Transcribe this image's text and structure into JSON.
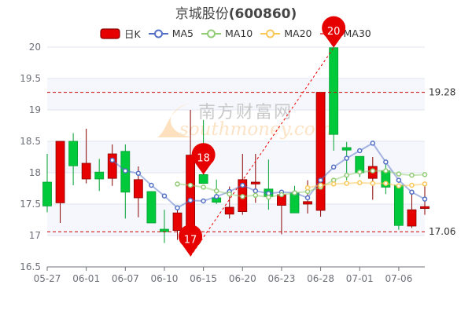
{
  "title": {
    "name": "京城股份",
    "code": "(600860)"
  },
  "watermark": {
    "cn": "南方财富网",
    "en": "southmoney.com"
  },
  "legend": [
    {
      "label": "日K",
      "color": "#e60000",
      "type": "candle"
    },
    {
      "label": "MA5",
      "color": "#5470c6",
      "type": "line"
    },
    {
      "label": "MA10",
      "color": "#91cc75",
      "type": "line"
    },
    {
      "label": "MA20",
      "color": "#fac858",
      "type": "line"
    },
    {
      "label": "MA30",
      "color": "#ee6666",
      "type": "line"
    }
  ],
  "chart_data": {
    "type": "candlestick",
    "up_color": "#e60000",
    "down_color": "#00c93c",
    "ylim": [
      16.5,
      20
    ],
    "y_ticks": [
      "16.5",
      "17",
      "17.5",
      "18",
      "18.5",
      "19",
      "19.5",
      "20"
    ],
    "x_tick_labels": [
      "05-27",
      "06-01",
      "06-07",
      "06-10",
      "06-15",
      "06-20",
      "06-23",
      "06-28",
      "07-01",
      "07-06"
    ],
    "x_tick_every": 3,
    "grid": true,
    "candles": [
      {
        "o": 17.85,
        "c": 17.47,
        "l": 17.37,
        "h": 18.3
      },
      {
        "o": 17.52,
        "c": 18.5,
        "l": 17.2,
        "h": 18.5
      },
      {
        "o": 18.5,
        "c": 18.11,
        "l": 17.8,
        "h": 18.63
      },
      {
        "o": 17.9,
        "c": 18.15,
        "l": 17.83,
        "h": 18.7
      },
      {
        "o": 18.01,
        "c": 17.9,
        "l": 17.71,
        "h": 18.22
      },
      {
        "o": 17.91,
        "c": 18.3,
        "l": 17.79,
        "h": 18.45
      },
      {
        "o": 18.34,
        "c": 17.69,
        "l": 17.27,
        "h": 18.45
      },
      {
        "o": 17.6,
        "c": 17.89,
        "l": 17.29,
        "h": 18.1
      },
      {
        "o": 17.7,
        "c": 17.2,
        "l": 17.2,
        "h": 17.7
      },
      {
        "o": 17.1,
        "c": 17.06,
        "l": 16.88,
        "h": 17.41
      },
      {
        "o": 17.08,
        "c": 17.36,
        "l": 16.93,
        "h": 17.44
      },
      {
        "o": 17.1,
        "c": 18.28,
        "l": 16.67,
        "h": 19.0
      },
      {
        "o": 17.97,
        "c": 17.83,
        "l": 17.83,
        "h": 18.84
      },
      {
        "o": 17.6,
        "c": 17.53,
        "l": 17.5,
        "h": 17.89
      },
      {
        "o": 17.34,
        "c": 17.45,
        "l": 17.27,
        "h": 17.78
      },
      {
        "o": 17.38,
        "c": 17.89,
        "l": 17.33,
        "h": 18.3
      },
      {
        "o": 17.82,
        "c": 17.85,
        "l": 17.52,
        "h": 18.3
      },
      {
        "o": 17.74,
        "c": 17.62,
        "l": 17.41,
        "h": 18.21
      },
      {
        "o": 17.48,
        "c": 17.65,
        "l": 17.02,
        "h": 17.67
      },
      {
        "o": 17.68,
        "c": 17.36,
        "l": 17.36,
        "h": 17.79
      },
      {
        "o": 17.5,
        "c": 17.54,
        "l": 17.35,
        "h": 17.88
      },
      {
        "o": 17.4,
        "c": 19.28,
        "l": 17.3,
        "h": 19.28
      },
      {
        "o": 19.99,
        "c": 18.61,
        "l": 18.35,
        "h": 19.99
      },
      {
        "o": 18.4,
        "c": 18.36,
        "l": 17.88,
        "h": 18.49
      },
      {
        "o": 18.26,
        "c": 18.0,
        "l": 17.93,
        "h": 18.26
      },
      {
        "o": 17.91,
        "c": 18.1,
        "l": 17.57,
        "h": 18.25
      },
      {
        "o": 18.03,
        "c": 17.77,
        "l": 17.66,
        "h": 18.13
      },
      {
        "o": 17.8,
        "c": 17.16,
        "l": 17.09,
        "h": 17.8
      },
      {
        "o": 17.15,
        "c": 17.41,
        "l": 17.12,
        "h": 17.65
      },
      {
        "o": 17.43,
        "c": 17.46,
        "l": 17.33,
        "h": 17.79
      }
    ],
    "series": [
      {
        "name": "MA5",
        "start": 5,
        "values": [
          18.2,
          18.03,
          17.99,
          17.8,
          17.63,
          17.44,
          17.56,
          17.55,
          17.62,
          17.7,
          17.8,
          17.71,
          17.67,
          17.69,
          17.68,
          17.6,
          17.88,
          18.09,
          18.23,
          18.35,
          18.47,
          18.17,
          17.88,
          17.69,
          17.58
        ]
      },
      {
        "name": "MA10",
        "start": 10,
        "values": [
          17.82,
          17.8,
          17.77,
          17.71,
          17.66,
          17.62,
          17.64,
          17.61,
          17.65,
          17.68,
          17.7,
          17.77,
          17.88,
          17.96,
          18.01,
          18.03,
          18.03,
          17.98,
          17.96,
          17.97
        ]
      },
      {
        "name": "MA20",
        "start": 20,
        "values": [
          17.76,
          17.8,
          17.82,
          17.83,
          17.84,
          17.83,
          17.83,
          17.79,
          17.8,
          17.82
        ]
      }
    ],
    "mark_lines": [
      {
        "value": 19.28,
        "label": "19.28"
      },
      {
        "value": 17.06,
        "label": "17.06"
      }
    ],
    "mark_points": [
      {
        "index": 11,
        "value": 16.67,
        "label": "17"
      },
      {
        "index": 12,
        "value": 17.97,
        "label": "18"
      },
      {
        "index": 22,
        "value": 19.99,
        "label": "20"
      }
    ],
    "trend_line": [
      {
        "index": 11,
        "value": 16.67
      },
      {
        "index": 22,
        "value": 19.99
      }
    ]
  }
}
